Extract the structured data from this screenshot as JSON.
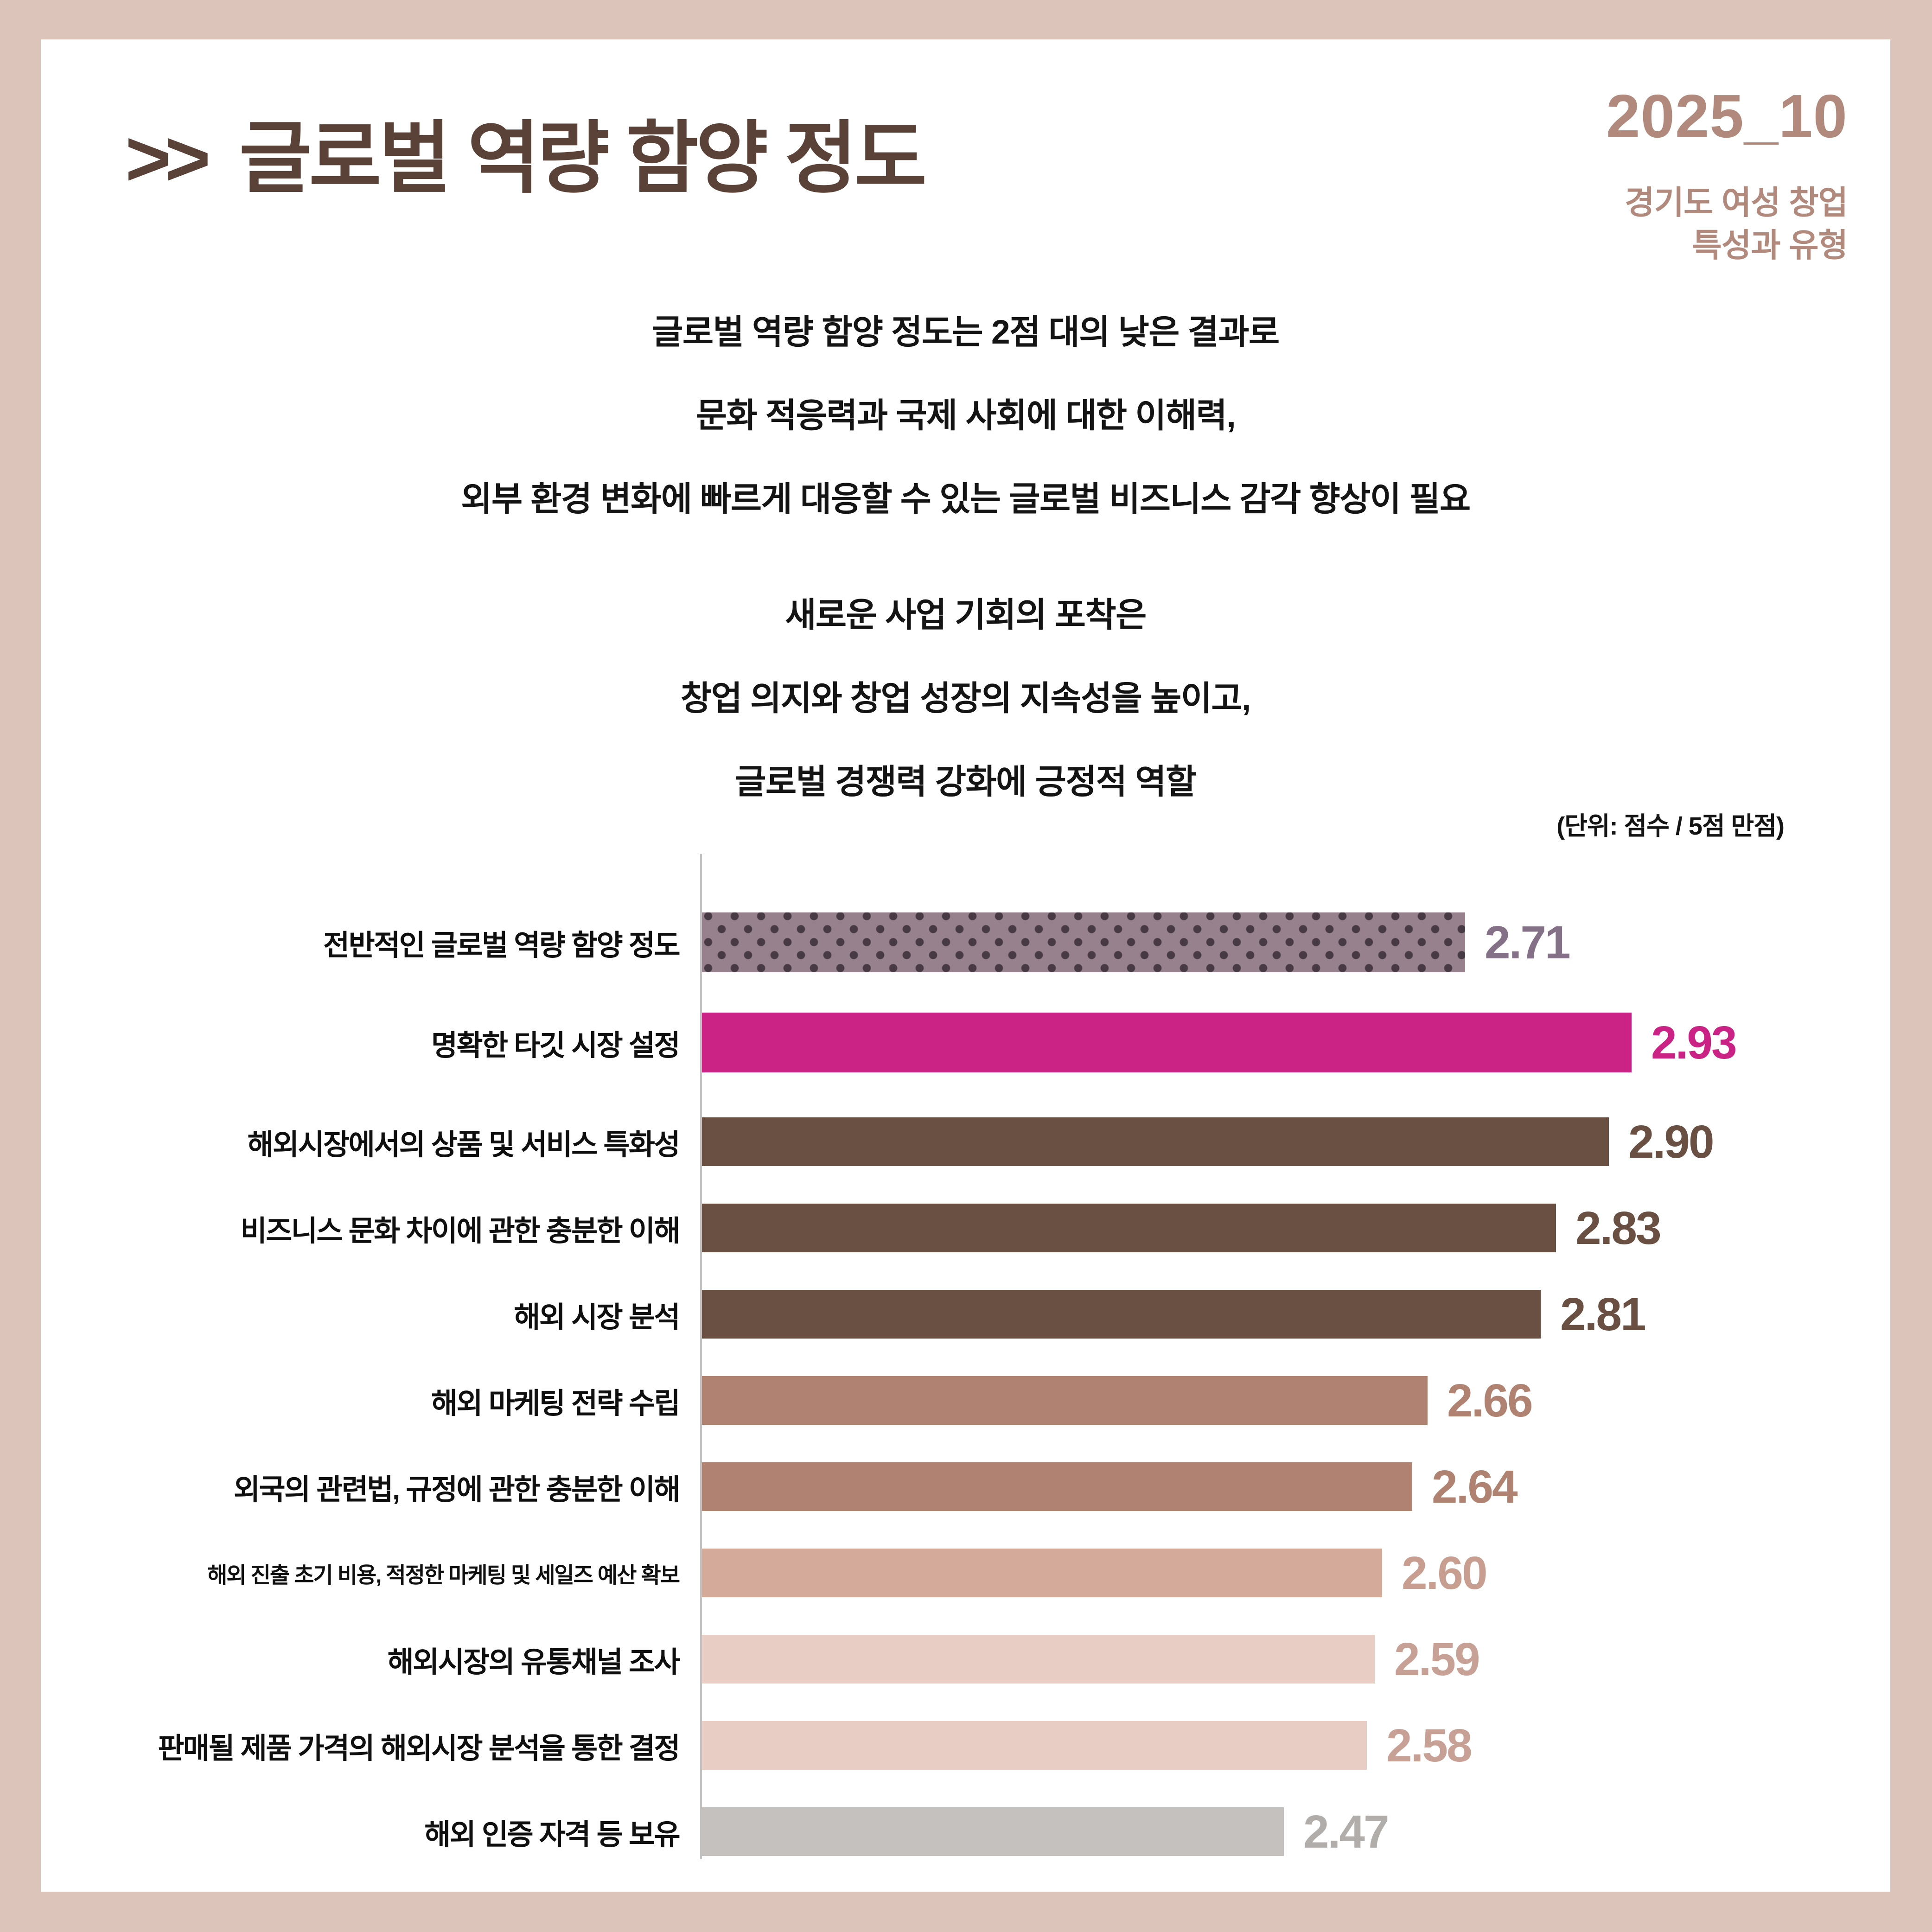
{
  "header": {
    "title_prefix": ">>",
    "title": "글로벌 역량 함양 정도",
    "date": "2025_10",
    "subtitle_line1": "경기도 여성 창업",
    "subtitle_line2": "특성과 유형"
  },
  "intro": {
    "para1": [
      "글로벌 역량 함양 정도는 2점 대의 낮은 결과로",
      "문화 적응력과 국제 사회에 대한 이해력,",
      "외부 환경 변화에 빠르게 대응할 수 있는 글로벌 비즈니스 감각 향상이 필요"
    ],
    "para2": [
      "새로운 사업 기회의 포착은",
      "창업 의지와 창업 성장의 지속성을 높이고,",
      "글로벌 경쟁력 강화에 긍정적 역할"
    ]
  },
  "chart": {
    "unit_note": "(단위: 점수 / 5점 만점)"
  },
  "colors": {
    "frame": "#dcc4ba",
    "card": "#ffffff",
    "title": "#5a4238",
    "date_accent": "#b18a7d",
    "body_text": "#141414",
    "axis_line": "#c2c2c2"
  },
  "chart_data": {
    "type": "bar",
    "orientation": "horizontal",
    "title": "글로벌 역량 함양 정도",
    "unit": "점수 / 5점 만점",
    "scale_max": 5,
    "xlim": [
      1.7,
      3.0
    ],
    "grid": false,
    "legend": false,
    "categories": [
      "전반적인 글로벌 역량 함양 정도",
      "명확한 타깃 시장 설정",
      "해외시장에서의 상품 및 서비스 특화성",
      "비즈니스 문화 차이에 관한 충분한 이해",
      "해외 시장 분석",
      "해외 마케팅 전략 수립",
      "외국의 관련법, 규정에 관한 충분한 이해",
      "해외 진출 초기 비용, 적정한 마케팅 및 세일즈 예산 확보",
      "해외시장의 유통채널 조사",
      "판매될 제품 가격의 해외시장 분석을 통한 결정",
      "해외 인증 자격 등 보유"
    ],
    "values": [
      2.71,
      2.93,
      2.9,
      2.83,
      2.81,
      2.66,
      2.64,
      2.6,
      2.59,
      2.58,
      2.47
    ],
    "rows": [
      {
        "label": "전반적인 글로벌 역량 함양 정도",
        "value": 2.71,
        "value_label": "2.71",
        "bar_color": "#96818d",
        "dot_color": "#473a44",
        "value_color": "#857187",
        "pattern": "dots"
      },
      {
        "label": "명확한 타깃 시장 설정",
        "value": 2.93,
        "value_label": "2.93",
        "bar_color": "#cb2286",
        "value_color": "#cb2286",
        "pattern": "solid"
      },
      {
        "label": "해외시장에서의 상품 및 서비스 특화성",
        "value": 2.9,
        "value_label": "2.90",
        "bar_color": "#6a4f43",
        "value_color": "#6a4f43",
        "pattern": "solid"
      },
      {
        "label": "비즈니스 문화 차이에 관한 충분한 이해",
        "value": 2.83,
        "value_label": "2.83",
        "bar_color": "#6a4f43",
        "value_color": "#6a4f43",
        "pattern": "solid"
      },
      {
        "label": "해외 시장 분석",
        "value": 2.81,
        "value_label": "2.81",
        "bar_color": "#6a4f43",
        "value_color": "#6a4f43",
        "pattern": "solid"
      },
      {
        "label": "해외 마케팅 전략 수립",
        "value": 2.66,
        "value_label": "2.66",
        "bar_color": "#b08271",
        "value_color": "#b08271",
        "pattern": "solid"
      },
      {
        "label": "외국의 관련법, 규정에 관한 충분한 이해",
        "value": 2.64,
        "value_label": "2.64",
        "bar_color": "#b08271",
        "value_color": "#b08271",
        "pattern": "solid"
      },
      {
        "label": "해외 진출 초기 비용, 적정한 마케팅 및 세일즈 예산 확보",
        "value": 2.6,
        "value_label": "2.60",
        "bar_color": "#d4aa9b",
        "value_color": "#c79e8f",
        "pattern": "solid"
      },
      {
        "label": "해외시장의 유통채널 조사",
        "value": 2.59,
        "value_label": "2.59",
        "bar_color": "#e8cdc4",
        "value_color": "#c8a196",
        "pattern": "solid"
      },
      {
        "label": "판매될 제품 가격의 해외시장 분석을 통한 결정",
        "value": 2.58,
        "value_label": "2.58",
        "bar_color": "#e8cdc4",
        "value_color": "#c8a196",
        "pattern": "solid"
      },
      {
        "label": "해외 인증 자격 등 보유",
        "value": 2.47,
        "value_label": "2.47",
        "bar_color": "#c5c1bf",
        "value_color": "#b1adab",
        "pattern": "solid"
      }
    ]
  }
}
